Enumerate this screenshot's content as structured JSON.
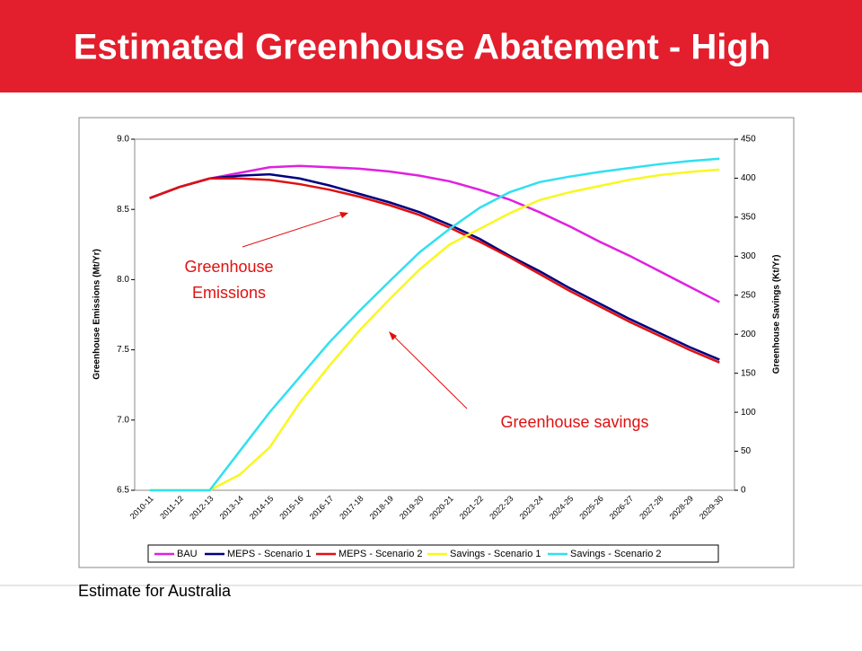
{
  "page_title": "Estimated Greenhouse Abatement - High",
  "footnote": "Estimate for Australia",
  "chart_data": {
    "type": "line",
    "ylabel": "Greenhouse Emissions (Mt/Yr)",
    "y2label": "Greenhouse Savings (Kt/Yr)",
    "categories": [
      "2010-11",
      "2011-12",
      "2012-13",
      "2013-14",
      "2014-15",
      "2015-16",
      "2016-17",
      "2017-18",
      "2018-19",
      "2019-20",
      "2020-21",
      "2021-22",
      "2022-23",
      "2023-24",
      "2024-25",
      "2025-26",
      "2026-27",
      "2027-28",
      "2028-29",
      "2029-30"
    ],
    "ylim": [
      6.5,
      9.0
    ],
    "yticks": [
      6.5,
      {
        "value": 7,
        "label": "7.0"
      },
      7.5,
      {
        "value": 8,
        "label": "8.0"
      },
      8.5,
      {
        "value": 9,
        "label": "9.0"
      }
    ],
    "y2lim": [
      0,
      450
    ],
    "y2ticks": [
      0,
      50,
      100,
      150,
      200,
      250,
      300,
      350,
      400,
      450
    ],
    "legend": "bottom",
    "series": [
      {
        "name": "BAU",
        "color": "#e020e0",
        "values": [
          8.58,
          8.66,
          8.72,
          8.76,
          8.8,
          8.81,
          8.8,
          8.79,
          8.77,
          8.74,
          8.7,
          8.64,
          8.57,
          8.48,
          8.38,
          8.27,
          8.17,
          8.06,
          7.95,
          7.84
        ]
      },
      {
        "name": "MEPS - Scenario 1",
        "color": "#000080",
        "values": [
          8.58,
          8.66,
          8.72,
          8.74,
          8.75,
          8.72,
          8.67,
          8.61,
          8.55,
          8.48,
          8.39,
          8.29,
          8.17,
          8.06,
          7.94,
          7.83,
          7.72,
          7.62,
          7.52,
          7.43
        ]
      },
      {
        "name": "MEPS - Scenario 2",
        "color": "#e01010",
        "values": [
          8.58,
          8.66,
          8.72,
          8.72,
          8.71,
          8.68,
          8.64,
          8.59,
          8.53,
          8.46,
          8.37,
          8.27,
          8.16,
          8.04,
          7.92,
          7.81,
          7.7,
          7.6,
          7.5,
          7.41
        ]
      },
      {
        "name": "Savings - Scenario 1",
        "color": "#f8f820",
        "axis": "y2",
        "values": [
          0,
          0,
          0,
          20,
          55,
          112,
          160,
          205,
          245,
          283,
          315,
          335,
          355,
          372,
          382,
          390,
          398,
          404,
          408,
          411
        ]
      },
      {
        "name": "Savings - Scenario 2",
        "color": "#30e0f0",
        "axis": "y2",
        "values": [
          0,
          0,
          0,
          50,
          100,
          145,
          190,
          230,
          268,
          305,
          335,
          362,
          382,
          395,
          402,
          408,
          413,
          418,
          422,
          425
        ]
      }
    ],
    "annotations": [
      {
        "lines": [
          "Greenhouse",
          "Emissions"
        ]
      },
      {
        "text": "Greenhouse savings"
      }
    ]
  }
}
